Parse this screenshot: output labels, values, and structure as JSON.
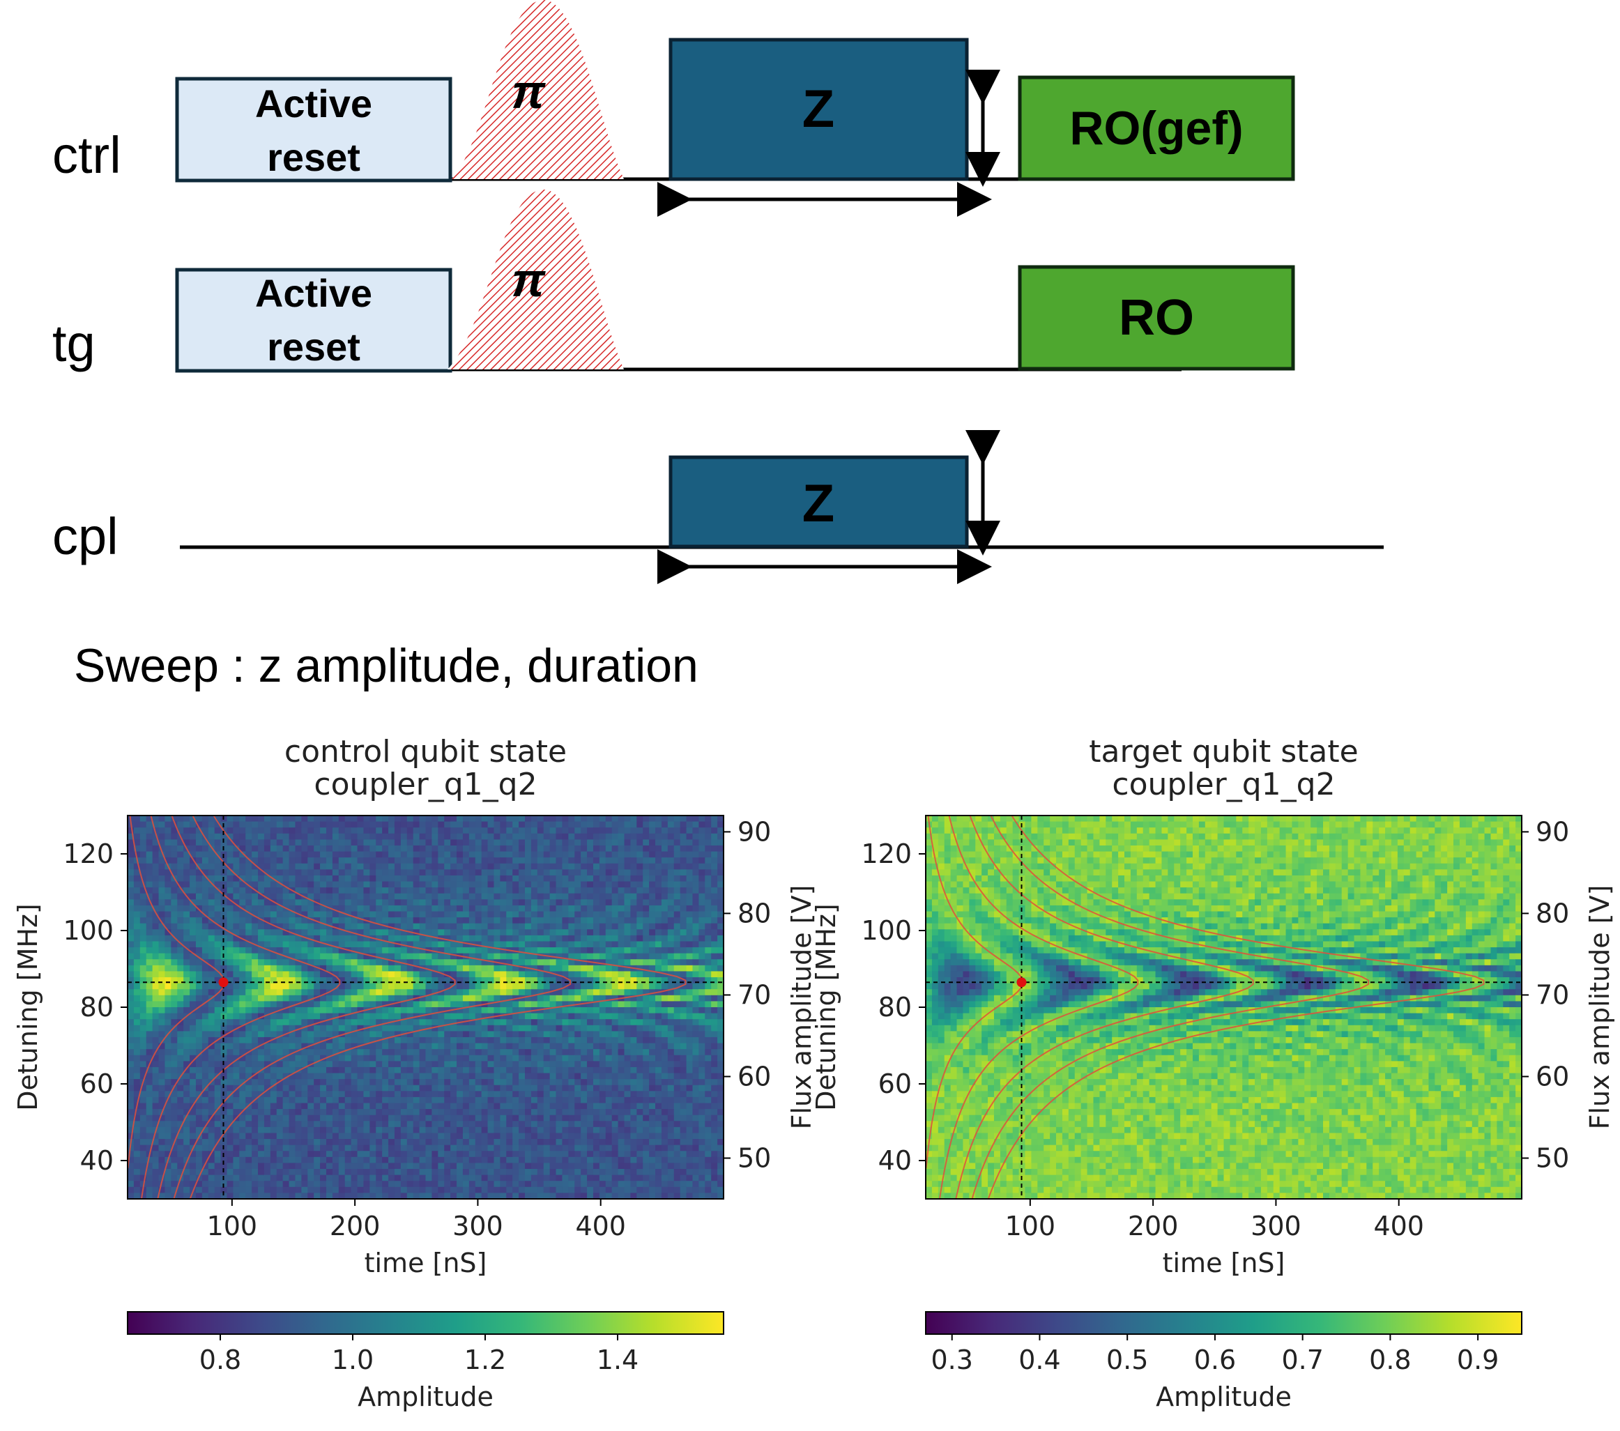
{
  "channels": {
    "ctrl": {
      "label": "ctrl",
      "reset_line1": "Active",
      "reset_line2": "reset",
      "pi_label": "π",
      "z_label": "Z",
      "ro_label": "RO(gef)"
    },
    "tg": {
      "label": "tg",
      "reset_line1": "Active",
      "reset_line2": "reset",
      "pi_label": "π",
      "ro_label": "RO"
    },
    "cpl": {
      "label": "cpl",
      "z_label": "Z"
    }
  },
  "sweep_text": "Sweep : z amplitude, duration",
  "colors": {
    "reset_fill": "#dce9f6",
    "z_fill": "#1a5e80",
    "ro_fill": "#4ea72f",
    "pi_hatch": "#d62828",
    "colormap": [
      "#440154",
      "#482878",
      "#3e4989",
      "#31688e",
      "#26828e",
      "#1f9e89",
      "#35b779",
      "#6ece58",
      "#b5de2b",
      "#fde725"
    ]
  },
  "chart_data": [
    {
      "type": "heatmap",
      "title_line1": "control qubit state",
      "title_line2": "coupler_q1_q2",
      "xlabel": "time [nS]",
      "ylabel": "Detuning [MHz]",
      "y2label": "Flux amplitude [V]",
      "xlim": [
        15,
        500
      ],
      "ylim": [
        30,
        130
      ],
      "y2lim": [
        45,
        92
      ],
      "xticks": [
        100,
        200,
        300,
        400
      ],
      "yticks": [
        40,
        60,
        80,
        100,
        120
      ],
      "y2ticks": [
        50,
        60,
        70,
        80,
        90
      ],
      "colorbar": {
        "label": "Amplitude",
        "range": [
          0.66,
          1.56
        ],
        "ticks": [
          0.8,
          1.0,
          1.2,
          1.4
        ],
        "tick_labels": [
          "0.8",
          "1.0",
          "1.2",
          "1.4"
        ]
      },
      "resonance": {
        "detuning": 86.5,
        "time": 93,
        "period_ns": 94
      },
      "marker": {
        "x": 93,
        "y": 86.5
      },
      "high_at_resonance": true
    },
    {
      "type": "heatmap",
      "title_line1": "target qubit state",
      "title_line2": "coupler_q1_q2",
      "xlabel": "time [nS]",
      "ylabel": "Detuning [MHz]",
      "y2label": "Flux amplitude [V]",
      "xlim": [
        15,
        500
      ],
      "ylim": [
        30,
        130
      ],
      "y2lim": [
        45,
        92
      ],
      "xticks": [
        100,
        200,
        300,
        400
      ],
      "yticks": [
        40,
        60,
        80,
        100,
        120
      ],
      "y2ticks": [
        50,
        60,
        70,
        80,
        90
      ],
      "colorbar": {
        "label": "Amplitude",
        "range": [
          0.27,
          0.95
        ],
        "ticks": [
          0.3,
          0.4,
          0.5,
          0.6,
          0.7,
          0.8,
          0.9
        ],
        "tick_labels": [
          "0.3",
          "0.4",
          "0.5",
          "0.6",
          "0.7",
          "0.8",
          "0.9"
        ]
      },
      "resonance": {
        "detuning": 86.5,
        "time": 93,
        "period_ns": 94
      },
      "marker": {
        "x": 93,
        "y": 86.5
      },
      "high_at_resonance": false
    }
  ]
}
